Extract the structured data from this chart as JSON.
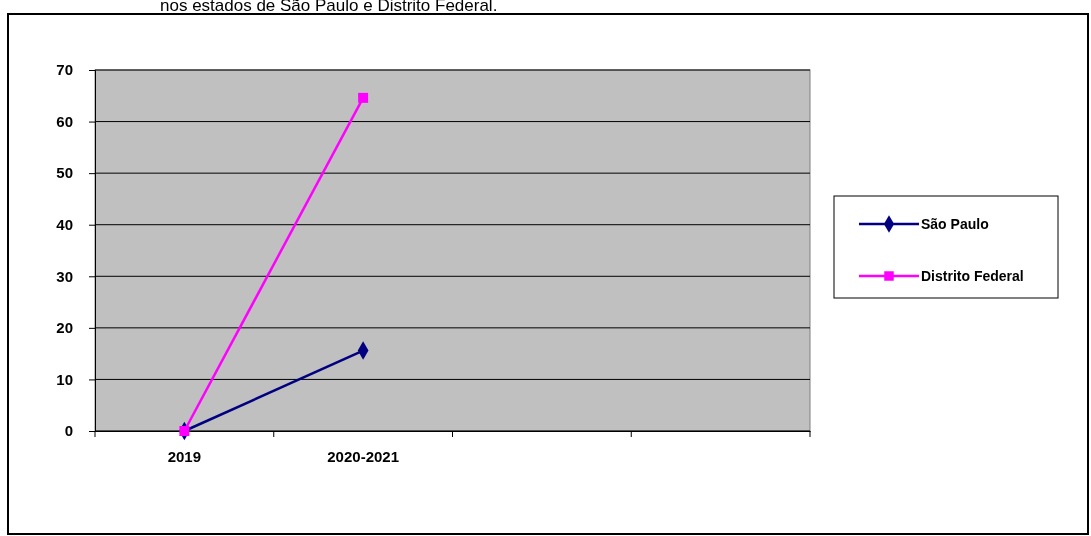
{
  "chart_data": {
    "type": "line",
    "title": "nos estados de São Paulo e Distrito Federal.",
    "categories": [
      "2019",
      "2020-2021",
      null,
      null
    ],
    "series": [
      {
        "name": "São Paulo",
        "color": "#000080",
        "marker": "diamond",
        "values": [
          0,
          15.6,
          null,
          null
        ]
      },
      {
        "name": "Distrito Federal",
        "color": "#ff00ff",
        "marker": "square",
        "values": [
          0,
          64.6,
          null,
          null
        ]
      }
    ],
    "ylim": [
      0,
      70
    ],
    "yticks": [
      0,
      10,
      20,
      30,
      40,
      50,
      60,
      70
    ],
    "grid": "y",
    "legend": "right"
  }
}
